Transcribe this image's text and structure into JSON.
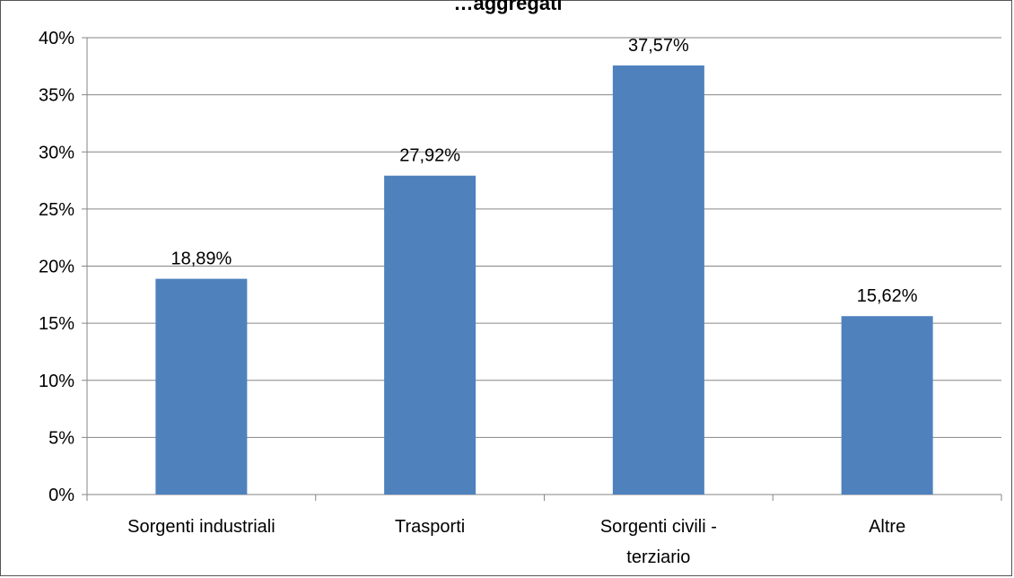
{
  "chart_data": {
    "type": "bar",
    "title": "…aggregati",
    "categories": [
      "Sorgenti industriali",
      "Trasporti",
      "Sorgenti civili - terziario",
      "Altre"
    ],
    "category_lines": [
      [
        "Sorgenti industriali"
      ],
      [
        "Trasporti"
      ],
      [
        "Sorgenti civili -",
        "terziario"
      ],
      [
        "Altre"
      ]
    ],
    "values": [
      18.89,
      27.92,
      37.57,
      15.62
    ],
    "value_labels": [
      "18,89%",
      "27,92%",
      "37,57%",
      "15,62%"
    ],
    "ylim": [
      0,
      40
    ],
    "y_ticks": [
      0,
      5,
      10,
      15,
      20,
      25,
      30,
      35,
      40
    ],
    "y_tick_labels": [
      "0%",
      "5%",
      "10%",
      "15%",
      "20%",
      "25%",
      "30%",
      "35%",
      "40%"
    ],
    "xlabel": "",
    "ylabel": "",
    "grid": true,
    "legend": "none",
    "bar_color": "#4f81bd"
  }
}
